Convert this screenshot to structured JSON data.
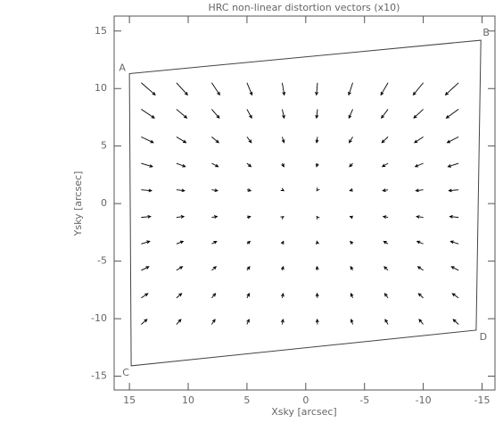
{
  "chart_data": {
    "type": "quiver",
    "title": "HRC non-linear distortion vectors (x10)",
    "x_label": "Xsky [arcsec]",
    "y_label": "Ysky [arcsec]",
    "xlim": [
      16.3,
      -16.1
    ],
    "ylim": [
      -16.2,
      16.3
    ],
    "xticks": [
      15,
      10,
      5,
      0,
      -5,
      -10,
      -15
    ],
    "yticks": [
      -15,
      -10,
      -5,
      0,
      5,
      10,
      15
    ],
    "color": "#000000",
    "x": [
      14,
      11,
      8,
      5,
      2,
      -1,
      -4,
      -7,
      -10,
      -13
    ],
    "y": [
      10.5,
      8.2,
      5.8,
      3.5,
      1.2,
      -1.2,
      -3.5,
      -5.8,
      -8.2,
      -10.5
    ],
    "u": [
      [
        -1.19,
        -0.94,
        -0.68,
        -0.43,
        -0.17,
        0.09,
        0.34,
        0.6,
        0.85,
        1.11
      ],
      [
        -1.12,
        -0.88,
        -0.64,
        -0.4,
        -0.16,
        0.08,
        0.32,
        0.56,
        0.8,
        1.04
      ],
      [
        -1.03,
        -0.81,
        -0.59,
        -0.37,
        -0.15,
        0.07,
        0.3,
        0.52,
        0.74,
        0.96
      ],
      [
        -0.96,
        -0.75,
        -0.55,
        -0.34,
        -0.14,
        0.07,
        0.27,
        0.48,
        0.68,
        0.89
      ],
      [
        -0.88,
        -0.69,
        -0.5,
        -0.32,
        -0.13,
        0.06,
        0.25,
        0.44,
        0.63,
        0.82
      ],
      [
        -0.8,
        -0.63,
        -0.46,
        -0.29,
        -0.11,
        0.06,
        0.23,
        0.4,
        0.57,
        0.74
      ],
      [
        -0.72,
        -0.57,
        -0.41,
        -0.26,
        -0.1,
        0.05,
        0.21,
        0.36,
        0.52,
        0.67
      ],
      [
        -0.65,
        -0.51,
        -0.37,
        -0.23,
        -0.09,
        0.05,
        0.18,
        0.32,
        0.46,
        0.6
      ],
      [
        -0.56,
        -0.44,
        -0.32,
        -0.2,
        -0.08,
        0.04,
        0.16,
        0.28,
        0.4,
        0.52
      ],
      [
        -0.49,
        -0.38,
        -0.28,
        -0.17,
        -0.07,
        0.03,
        0.14,
        0.24,
        0.35,
        0.45
      ]
    ],
    "v": [
      [
        -1.05,
        -1.05,
        -1.05,
        -1.05,
        -1.05,
        -1.05,
        -1.05,
        -1.05,
        -1.05,
        -1.05
      ],
      [
        -0.76,
        -0.76,
        -0.76,
        -0.76,
        -0.76,
        -0.76,
        -0.76,
        -0.76,
        -0.76,
        -0.76
      ],
      [
        -0.5,
        -0.5,
        -0.5,
        -0.5,
        -0.5,
        -0.5,
        -0.5,
        -0.5,
        -0.5,
        -0.5
      ],
      [
        -0.29,
        -0.29,
        -0.29,
        -0.29,
        -0.29,
        -0.29,
        -0.29,
        -0.29,
        -0.29,
        -0.29
      ],
      [
        -0.08,
        -0.08,
        -0.08,
        -0.08,
        -0.08,
        -0.08,
        -0.08,
        -0.08,
        -0.08,
        -0.08
      ],
      [
        0.08,
        0.08,
        0.08,
        0.08,
        0.08,
        0.08,
        0.08,
        0.08,
        0.08,
        0.08
      ],
      [
        0.22,
        0.22,
        0.22,
        0.22,
        0.22,
        0.22,
        0.22,
        0.22,
        0.22,
        0.22
      ],
      [
        0.32,
        0.32,
        0.32,
        0.32,
        0.32,
        0.32,
        0.32,
        0.32,
        0.32,
        0.32
      ],
      [
        0.38,
        0.38,
        0.38,
        0.38,
        0.38,
        0.38,
        0.38,
        0.38,
        0.38,
        0.38
      ],
      [
        0.43,
        0.43,
        0.43,
        0.43,
        0.43,
        0.43,
        0.43,
        0.43,
        0.43,
        0.43
      ]
    ],
    "outline": {
      "labels": [
        "A",
        "B",
        "D",
        "C"
      ],
      "x": [
        15,
        -14.9,
        -14.5,
        14.85
      ],
      "y": [
        11.3,
        14.2,
        -11.0,
        -14.1
      ]
    }
  }
}
